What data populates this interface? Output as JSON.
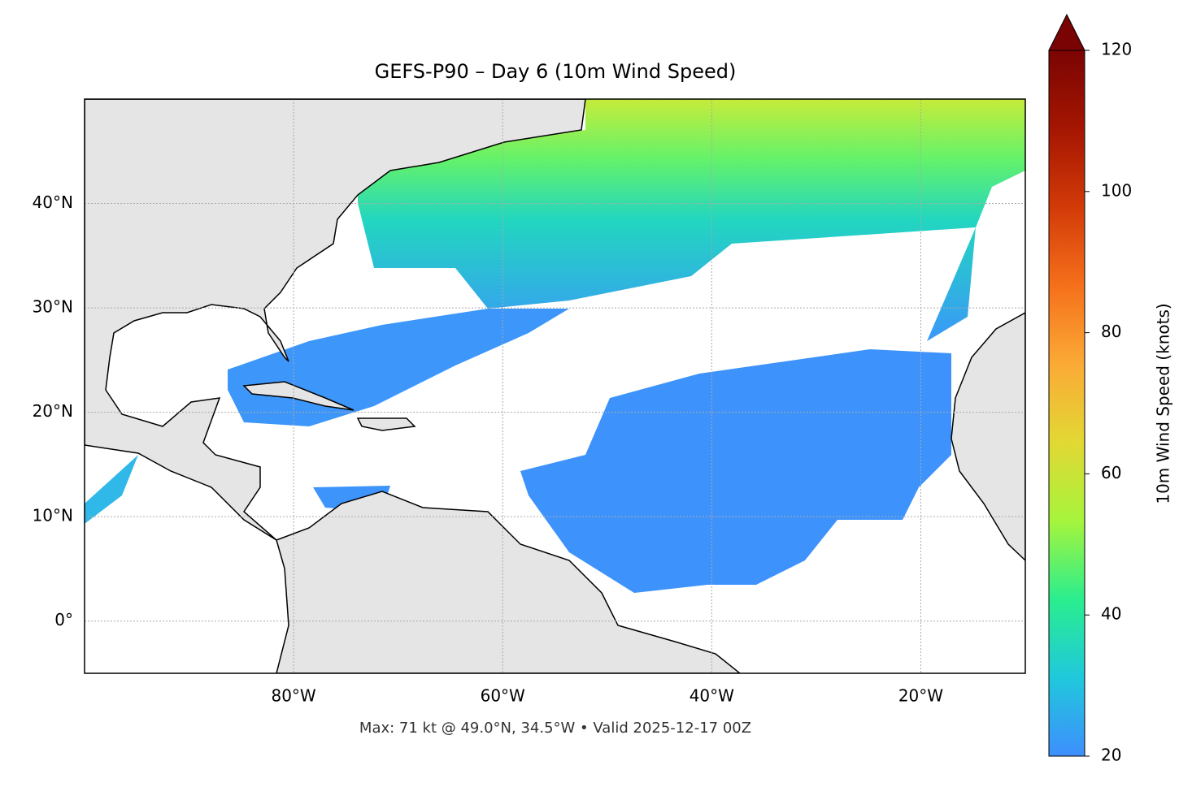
{
  "chart_data": {
    "type": "map",
    "title": "GEFS-P90 – Day 6 (10m Wind Speed)",
    "footer": "Max: 71 kt @ 49.0°N, 34.5°W • Valid 2025-12-17 00Z",
    "xlim": [
      -100,
      -10
    ],
    "ylim": [
      -5,
      50
    ],
    "xticks": [
      {
        "value": -80,
        "label": "80°W"
      },
      {
        "value": -60,
        "label": "60°W"
      },
      {
        "value": -40,
        "label": "40°W"
      },
      {
        "value": -20,
        "label": "20°W"
      }
    ],
    "yticks": [
      {
        "value": 0,
        "label": "0°"
      },
      {
        "value": 10,
        "label": "10°N"
      },
      {
        "value": 20,
        "label": "20°N"
      },
      {
        "value": 30,
        "label": "30°N"
      },
      {
        "value": 40,
        "label": "40°N"
      }
    ],
    "grid": true,
    "colorbar": {
      "label": "10m Wind Speed (knots)",
      "lim": [
        20,
        120
      ],
      "ticks": [
        20,
        40,
        60,
        80,
        100,
        120
      ],
      "colors": [
        "#3e8ffd",
        "#20c8dc",
        "#2aee8e",
        "#a6f43c",
        "#e2d834",
        "#fbaa36",
        "#f5701b",
        "#d23a08",
        "#a51602",
        "#7a0403"
      ]
    }
  }
}
